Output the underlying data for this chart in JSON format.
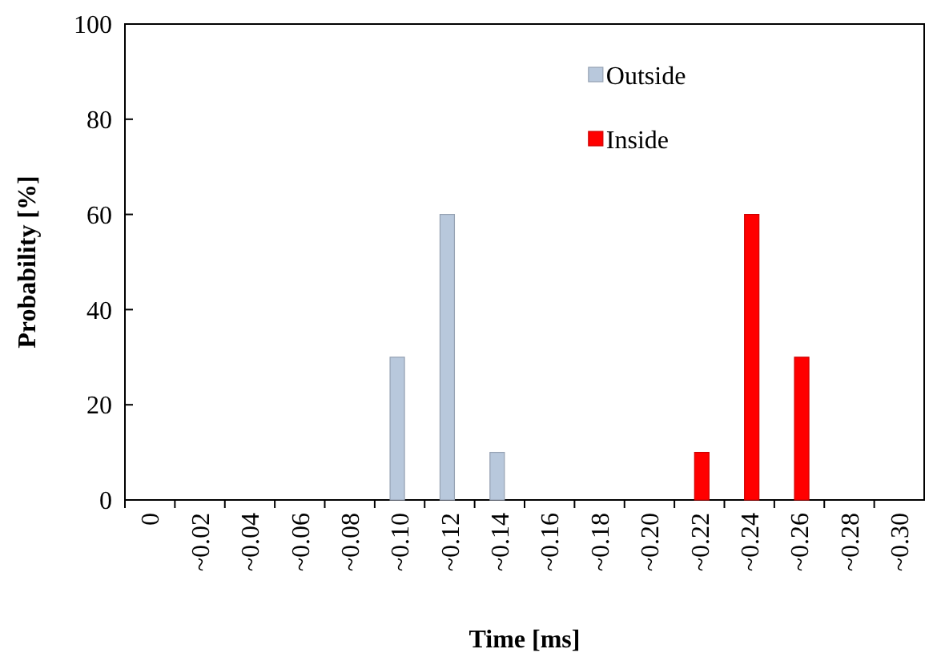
{
  "chart_data": {
    "type": "bar",
    "xlabel": "Time [ms]",
    "ylabel": "Probability [%]",
    "categories": [
      "0",
      "~0.02",
      "~0.04",
      "~0.06",
      "~0.08",
      "~0.10",
      "~0.12",
      "~0.14",
      "~0.16",
      "~0.18",
      "~0.20",
      "~0.22",
      "~0.24",
      "~0.26",
      "~0.28",
      "~0.30"
    ],
    "series": [
      {
        "name": "Outside",
        "color": "#b8c8dc",
        "values": [
          0,
          0,
          0,
          0,
          0,
          30,
          60,
          10,
          0,
          0,
          0,
          0,
          0,
          0,
          0,
          0
        ]
      },
      {
        "name": "Inside",
        "color": "#ff0000",
        "values": [
          0,
          0,
          0,
          0,
          0,
          0,
          0,
          0,
          0,
          0,
          0,
          10,
          60,
          30,
          0,
          0
        ]
      }
    ],
    "ylim": [
      0,
      100
    ],
    "yticks": [
      0,
      20,
      40,
      60,
      80,
      100
    ],
    "legend": "top right"
  }
}
